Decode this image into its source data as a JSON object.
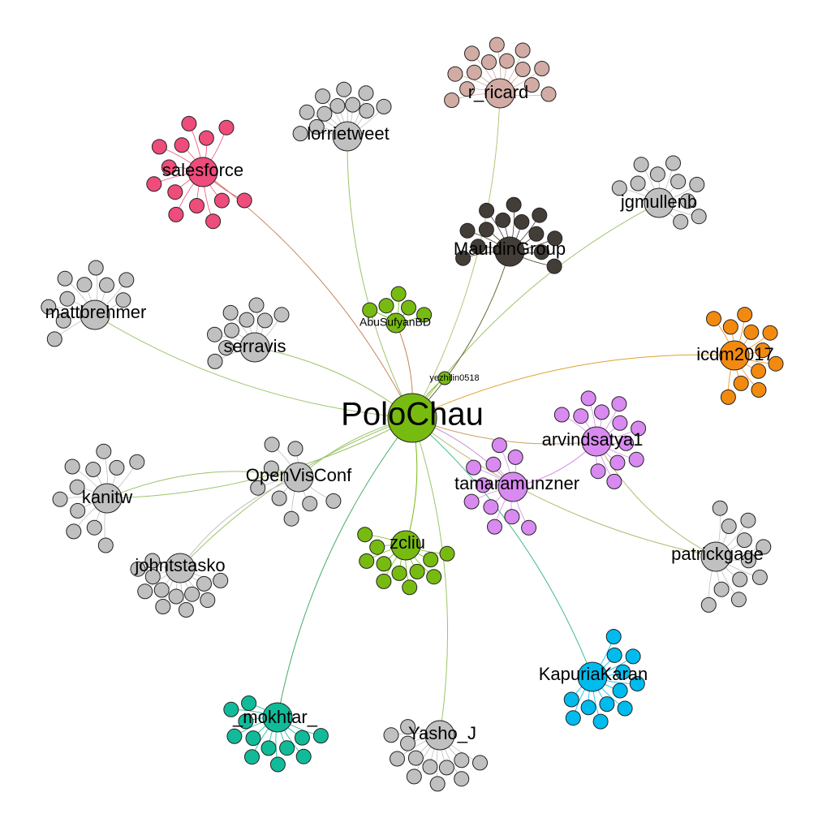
{
  "graph": {
    "center": {
      "id": "PoloChau",
      "label": "PoloChau",
      "color": "#77bb11"
    },
    "clusters": [
      {
        "id": "salesforce",
        "label": "salesforce",
        "color": "#ee4c7b",
        "leaves": 13,
        "edge_color": "#c8855a"
      },
      {
        "id": "lorrietweet",
        "label": "lorrietweet",
        "color": "#c0c0c0",
        "leaves": 11,
        "edge_color": "#9cc46a"
      },
      {
        "id": "r_ricard",
        "label": "r_ricard",
        "color": "#d2aca4",
        "leaves": 13,
        "edge_color": "#b8c47a"
      },
      {
        "id": "jgmullenb",
        "label": "jgmullenb",
        "color": "#c0c0c0",
        "leaves": 10,
        "edge_color": "#9cc46a"
      },
      {
        "id": "MauldinGroup",
        "label": "MauldinGroup",
        "color": "#433d38",
        "leaves": 13,
        "edge_color": "#6a6a30"
      },
      {
        "id": "mattbrehmer",
        "label": "mattbrehmer",
        "color": "#c0c0c0",
        "leaves": 10,
        "edge_color": "#9cc46a"
      },
      {
        "id": "AbuSufyanBD",
        "label": "AbuSufyanBD",
        "color": "#77bb11",
        "leaves": 5,
        "edge_color": "#c8855a"
      },
      {
        "id": "yezhilin0518",
        "label": "yezhilin0518",
        "color": "#77bb11",
        "leaves": 0,
        "edge_color": "#77bb11"
      },
      {
        "id": "serravis",
        "label": "serravis",
        "color": "#c0c0c0",
        "leaves": 9,
        "edge_color": "#9cc46a"
      },
      {
        "id": "icdm2017",
        "label": "icdm2017",
        "color": "#f28a10",
        "leaves": 11,
        "edge_color": "#e0a030"
      },
      {
        "id": "arvindsatya1",
        "label": "arvindsatya1",
        "color": "#d88af0",
        "leaves": 12,
        "edge_color": "#c8a05a"
      },
      {
        "id": "tamaramunzner",
        "label": "tamaramunzner",
        "color": "#d88af0",
        "leaves": 10,
        "edge_color": "#c890d8"
      },
      {
        "id": "OpenVisConf",
        "label": "OpenVisConf",
        "color": "#c0c0c0",
        "leaves": 8,
        "edge_color": "#9cc46a"
      },
      {
        "id": "kanitw",
        "label": "kanitw",
        "color": "#c0c0c0",
        "leaves": 11,
        "edge_color": "#9cc46a"
      },
      {
        "id": "johntstasko",
        "label": "johntstasko",
        "color": "#c0c0c0",
        "leaves": 12,
        "edge_color": "#9cc46a"
      },
      {
        "id": "zcliu",
        "label": "zcliu",
        "color": "#77bb11",
        "leaves": 11,
        "edge_color": "#77bb11"
      },
      {
        "id": "patrickgage",
        "label": "patrickgage",
        "color": "#c0c0c0",
        "leaves": 11,
        "edge_color": "#b8b870"
      },
      {
        "id": "KapuriaKaran",
        "label": "KapuriaKaran",
        "color": "#00bbee",
        "leaves": 12,
        "edge_color": "#44bb88"
      },
      {
        "id": "_mokhtar_",
        "label": "_mokhtar_",
        "color": "#11bb99",
        "leaves": 12,
        "edge_color": "#44aa66"
      },
      {
        "id": "Yasho_J",
        "label": "Yasho_J",
        "color": "#c0c0c0",
        "leaves": 12,
        "edge_color": "#9cc46a"
      }
    ],
    "extra_edges": [
      {
        "from": "arvindsatya1",
        "to": "patrickgage",
        "color": "#b8b870"
      },
      {
        "from": "tamaramunzner",
        "to": "arvindsatya1",
        "color": "#d88af0"
      },
      {
        "from": "OpenVisConf",
        "to": "johntstasko",
        "color": "#c0c0c0"
      },
      {
        "from": "OpenVisConf",
        "to": "kanitw",
        "color": "#9cc46a"
      }
    ]
  }
}
